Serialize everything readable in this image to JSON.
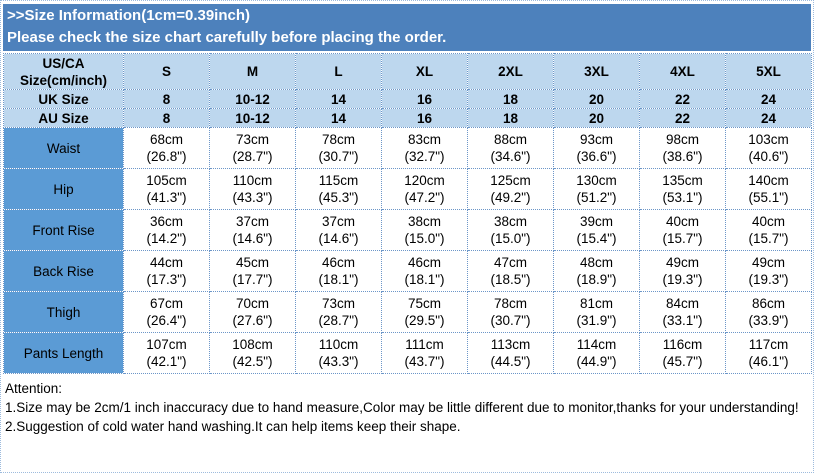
{
  "banner": {
    "line1": ">>Size Information(1cm=0.39inch)",
    "line2": "Please check the size chart carefully before placing the order."
  },
  "table": {
    "corner_header": "US/CA\nSize(cm/inch)",
    "size_columns": [
      "S",
      "M",
      "L",
      "XL",
      "2XL",
      "3XL",
      "4XL",
      "5XL"
    ],
    "size_rows": [
      {
        "label": "UK Size",
        "values": [
          "8",
          "10-12",
          "14",
          "16",
          "18",
          "20",
          "22",
          "24"
        ]
      },
      {
        "label": "AU Size",
        "values": [
          "8",
          "10-12",
          "14",
          "16",
          "18",
          "20",
          "22",
          "24"
        ]
      }
    ],
    "measurement_rows": [
      {
        "label": "Waist",
        "values": [
          "68cm\n(26.8\")",
          "73cm\n(28.7\")",
          "78cm\n(30.7\")",
          "83cm\n(32.7\")",
          "88cm\n(34.6\")",
          "93cm\n(36.6\")",
          "98cm\n(38.6\")",
          "103cm\n(40.6\")"
        ]
      },
      {
        "label": "Hip",
        "values": [
          "105cm\n(41.3\")",
          "110cm\n(43.3\")",
          "115cm\n(45.3\")",
          "120cm\n(47.2\")",
          "125cm\n(49.2\")",
          "130cm\n(51.2\")",
          "135cm\n(53.1\")",
          "140cm\n(55.1\")"
        ]
      },
      {
        "label": "Front Rise",
        "values": [
          "36cm\n(14.2\")",
          "37cm\n(14.6\")",
          "37cm\n(14.6\")",
          "38cm\n(15.0\")",
          "38cm\n(15.0\")",
          "39cm\n(15.4\")",
          "40cm\n(15.7\")",
          "40cm\n(15.7\")"
        ]
      },
      {
        "label": "Back Rise",
        "values": [
          "44cm\n(17.3\")",
          "45cm\n(17.7\")",
          "46cm\n(18.1\")",
          "46cm\n(18.1\")",
          "47cm\n(18.5\")",
          "48cm\n(18.9\")",
          "49cm\n(19.3\")",
          "49cm\n(19.3\")"
        ]
      },
      {
        "label": "Thigh",
        "values": [
          "67cm\n(26.4\")",
          "70cm\n(27.6\")",
          "73cm\n(28.7\")",
          "75cm\n(29.5\")",
          "78cm\n(30.7\")",
          "81cm\n(31.9\")",
          "84cm\n(33.1\")",
          "86cm\n(33.9\")"
        ]
      },
      {
        "label": "Pants Length",
        "values": [
          "107cm\n(42.1\")",
          "108cm\n(42.5\")",
          "110cm\n(43.3\")",
          "111cm\n(43.7\")",
          "113cm\n(44.5\")",
          "114cm\n(44.9\")",
          "116cm\n(45.7\")",
          "117cm\n(46.1\")"
        ]
      }
    ]
  },
  "attention": {
    "title": "Attention:",
    "note1": "1.Size may be 2cm/1 inch inaccuracy due to hand measure,Color may be little different due to monitor,thanks for your understanding!",
    "note2": "2.Suggestion of cold water hand washing.It can help items keep their shape."
  },
  "colors": {
    "banner_bg": "#4D81BC",
    "header_bg": "#BDD7EE",
    "label_bg": "#5B9BD5",
    "grid": "#6C96C8",
    "outer_border": "#9DBBDD",
    "banner_text": "#FFFFFF",
    "body_text": "#000000"
  }
}
